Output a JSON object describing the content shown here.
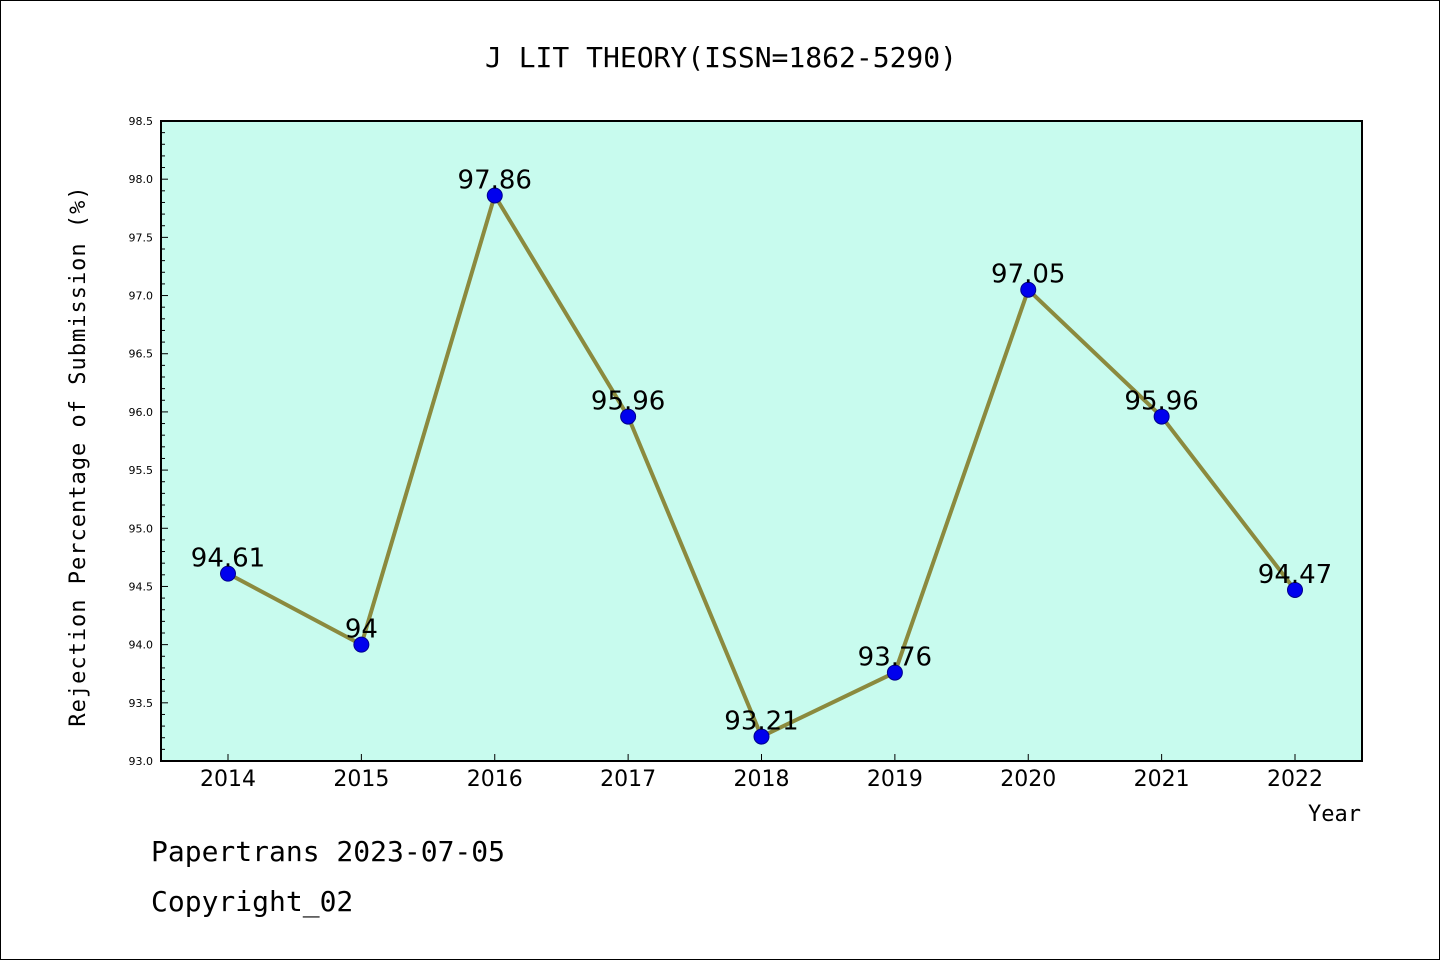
{
  "footer": {
    "line1": "Papertrans 2023-07-05",
    "line2": "Copyright_02"
  },
  "chart_data": {
    "type": "line",
    "title": "J LIT THEORY(ISSN=1862-5290)",
    "xlabel": "Year",
    "ylabel": "Rejection Percentage of Submission (%)",
    "categories": [
      "2014",
      "2015",
      "2016",
      "2017",
      "2018",
      "2019",
      "2020",
      "2021",
      "2022"
    ],
    "values": [
      94.61,
      94,
      97.86,
      95.96,
      93.21,
      93.76,
      97.05,
      95.96,
      94.47
    ],
    "data_labels": [
      "94.61",
      "94",
      "97.86",
      "95.96",
      "93.21",
      "93.76",
      "97.05",
      "95.96",
      "94.47"
    ],
    "ylim": [
      93.0,
      98.5
    ],
    "yticks": [
      "93.0",
      "93.5",
      "94.0",
      "94.5",
      "95.0",
      "95.5",
      "96.0",
      "96.5",
      "97.0",
      "97.5",
      "98.0",
      "98.5"
    ],
    "grid": false,
    "colors": {
      "plot_background": "#c8fbee",
      "line": "#8b8a3e",
      "marker": "#0000ee",
      "axis": "#000000"
    }
  }
}
